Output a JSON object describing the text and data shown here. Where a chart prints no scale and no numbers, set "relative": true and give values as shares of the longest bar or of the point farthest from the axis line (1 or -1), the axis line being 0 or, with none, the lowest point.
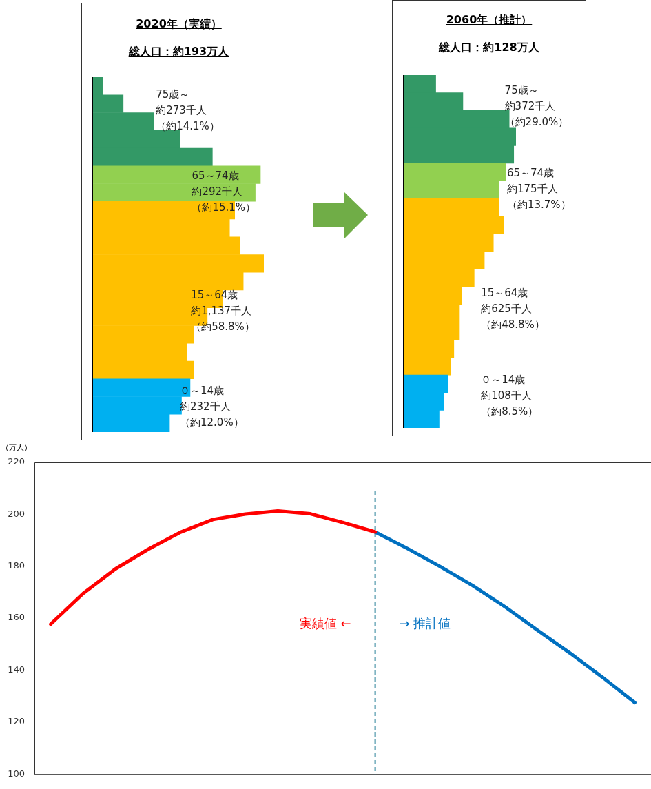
{
  "chart_data": [
    {
      "type": "bar",
      "orientation": "horizontal",
      "relative": true,
      "title": "2020年（実績）",
      "subtitle": "総人口：約193万人",
      "categories": [
        null,
        null,
        null,
        null,
        null,
        null,
        null,
        null,
        null,
        null,
        null,
        null,
        null,
        null,
        null,
        null,
        null,
        null,
        null,
        null
      ],
      "values": [
        0.06,
        0.18,
        0.36,
        0.51,
        0.7,
        0.98,
        0.95,
        0.83,
        0.8,
        0.86,
        1,
        0.88,
        0.76,
        0.67,
        0.59,
        0.55,
        0.59,
        0.57,
        0.52,
        0.45
      ],
      "colors": [
        "#339966",
        "#339966",
        "#339966",
        "#339966",
        "#339966",
        "#92d050",
        "#92d050",
        "#ffc000",
        "#ffc000",
        "#ffc000",
        "#ffc000",
        "#ffc000",
        "#ffc000",
        "#ffc000",
        "#ffc000",
        "#ffc000",
        "#ffc000",
        "#00b0f0",
        "#00b0f0",
        "#00b0f0"
      ],
      "annotations": [
        "75歳～",
        "約273千人",
        "（約14.1%）",
        "65～74歳",
        "約292千人",
        "（約15.1%）",
        "15～64歳",
        "約1,137千人",
        "（約58.8%）",
        "０～14歳",
        "約232千人",
        "（約12.0%）"
      ]
    },
    {
      "type": "bar",
      "orientation": "horizontal",
      "relative": true,
      "title": "2060年（推計）",
      "subtitle": "総人口：約128万人",
      "categories": [
        null,
        null,
        null,
        null,
        null,
        null,
        null,
        null,
        null,
        null,
        null,
        null,
        null,
        null,
        null,
        null,
        null,
        null,
        null,
        null
      ],
      "values": [
        0.29,
        0.53,
        0.94,
        1,
        0.98,
        0.91,
        0.85,
        0.85,
        0.89,
        0.8,
        0.72,
        0.63,
        0.52,
        0.5,
        0.5,
        0.45,
        0.42,
        0.4,
        0.36,
        0.32
      ],
      "colors": [
        "#339966",
        "#339966",
        "#339966",
        "#339966",
        "#339966",
        "#92d050",
        "#92d050",
        "#ffc000",
        "#ffc000",
        "#ffc000",
        "#ffc000",
        "#ffc000",
        "#ffc000",
        "#ffc000",
        "#ffc000",
        "#ffc000",
        "#ffc000",
        "#00b0f0",
        "#00b0f0",
        "#00b0f0"
      ],
      "annotations": [
        "75歳～",
        "約372千人",
        "（約29.0%）",
        "65～74歳",
        "約175千人",
        "（約13.7%）",
        "15～64歳",
        "約625千人",
        "（約48.8%）",
        "０～14歳",
        "約108千人",
        "（約8.5%）"
      ]
    },
    {
      "type": "line",
      "ylabel": "（万人）",
      "tick_labels": "y",
      "ylim": [
        100,
        220
      ],
      "yticks": [
        100,
        120,
        140,
        160,
        180,
        200,
        220
      ],
      "categories": [
        null,
        null,
        null,
        null,
        null,
        null,
        null,
        null,
        null,
        null,
        null,
        null,
        null,
        null,
        null,
        null,
        null,
        null,
        null
      ],
      "series": [
        {
          "color": "#ff0000",
          "values": [
            157.7,
            169.5,
            179.0,
            186.5,
            193.1,
            198.0,
            200.1,
            201.3,
            200.2,
            196.9,
            193.2,
            null,
            null,
            null,
            null,
            null,
            null,
            null,
            null
          ]
        },
        {
          "color": "#0070c0",
          "values": [
            null,
            null,
            null,
            null,
            null,
            null,
            null,
            null,
            null,
            null,
            193.2,
            186.8,
            179.9,
            172.6,
            164.4,
            155.4,
            146.6,
            137.3,
            127.5
          ]
        }
      ],
      "annotations": [
        "実績値 ←",
        "→ 推計値"
      ]
    }
  ]
}
